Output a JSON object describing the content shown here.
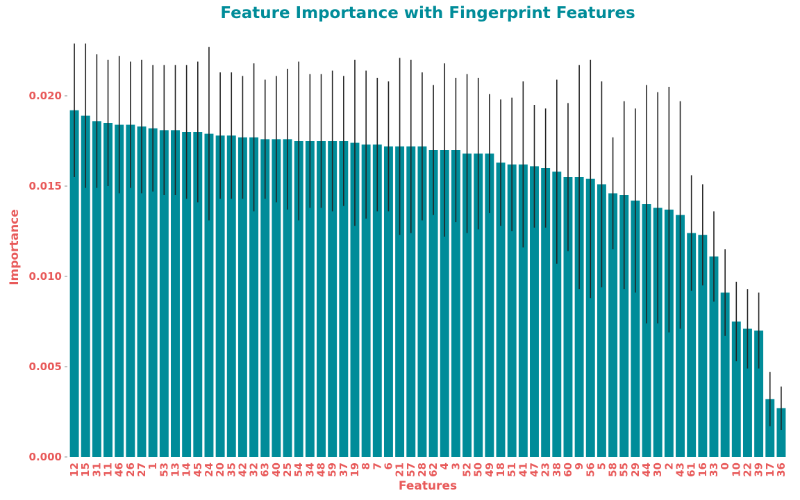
{
  "chart_data": {
    "type": "bar",
    "title": "Feature Importance with Fingerprint Features",
    "xlabel": "Features",
    "ylabel": "Importance",
    "ylim": [
      0,
      0.023
    ],
    "yticks": [
      "0.000",
      "0.005",
      "0.010",
      "0.015",
      "0.020"
    ],
    "grid": false,
    "colors": {
      "bar": "#008c99",
      "title": "#008c99",
      "labels": "#e85a5a",
      "error": "#222222"
    },
    "categories": [
      "12",
      "15",
      "31",
      "11",
      "46",
      "26",
      "27",
      "1",
      "53",
      "13",
      "14",
      "45",
      "24",
      "20",
      "35",
      "42",
      "32",
      "63",
      "40",
      "25",
      "54",
      "34",
      "48",
      "59",
      "37",
      "19",
      "8",
      "7",
      "6",
      "21",
      "57",
      "28",
      "62",
      "4",
      "3",
      "52",
      "50",
      "49",
      "18",
      "51",
      "41",
      "47",
      "23",
      "38",
      "60",
      "9",
      "56",
      "5",
      "58",
      "55",
      "29",
      "44",
      "30",
      "2",
      "43",
      "61",
      "16",
      "33",
      "0",
      "10",
      "22",
      "39",
      "17",
      "36"
    ],
    "values": [
      0.0192,
      0.0189,
      0.0186,
      0.0185,
      0.0184,
      0.0184,
      0.0183,
      0.0182,
      0.0181,
      0.0181,
      0.018,
      0.018,
      0.0179,
      0.0178,
      0.0178,
      0.0177,
      0.0177,
      0.0176,
      0.0176,
      0.0176,
      0.0175,
      0.0175,
      0.0175,
      0.0175,
      0.0175,
      0.0174,
      0.0173,
      0.0173,
      0.0172,
      0.0172,
      0.0172,
      0.0172,
      0.017,
      0.017,
      0.017,
      0.0168,
      0.0168,
      0.0168,
      0.0163,
      0.0162,
      0.0162,
      0.0161,
      0.016,
      0.0158,
      0.0155,
      0.0155,
      0.0154,
      0.0151,
      0.0146,
      0.0145,
      0.0142,
      0.014,
      0.0138,
      0.0137,
      0.0134,
      0.0124,
      0.0123,
      0.0111,
      0.0091,
      0.0075,
      0.0071,
      0.007,
      0.0032,
      0.0027
    ],
    "errors": [
      0.0037,
      0.004,
      0.0037,
      0.0035,
      0.0038,
      0.0035,
      0.0037,
      0.0035,
      0.0036,
      0.0036,
      0.0037,
      0.0039,
      0.0048,
      0.0035,
      0.0035,
      0.0034,
      0.0041,
      0.0033,
      0.0035,
      0.0039,
      0.0044,
      0.0037,
      0.0037,
      0.0039,
      0.0036,
      0.0046,
      0.0041,
      0.0037,
      0.0036,
      0.0049,
      0.0048,
      0.0041,
      0.0036,
      0.0048,
      0.004,
      0.0044,
      0.0042,
      0.0033,
      0.0035,
      0.0037,
      0.0046,
      0.0034,
      0.0033,
      0.0051,
      0.0041,
      0.0062,
      0.0066,
      0.0057,
      0.0031,
      0.0052,
      0.0051,
      0.0066,
      0.0064,
      0.0068,
      0.0063,
      0.0032,
      0.0028,
      0.0025,
      0.0024,
      0.0022,
      0.0022,
      0.0021,
      0.0015,
      0.0012
    ]
  }
}
